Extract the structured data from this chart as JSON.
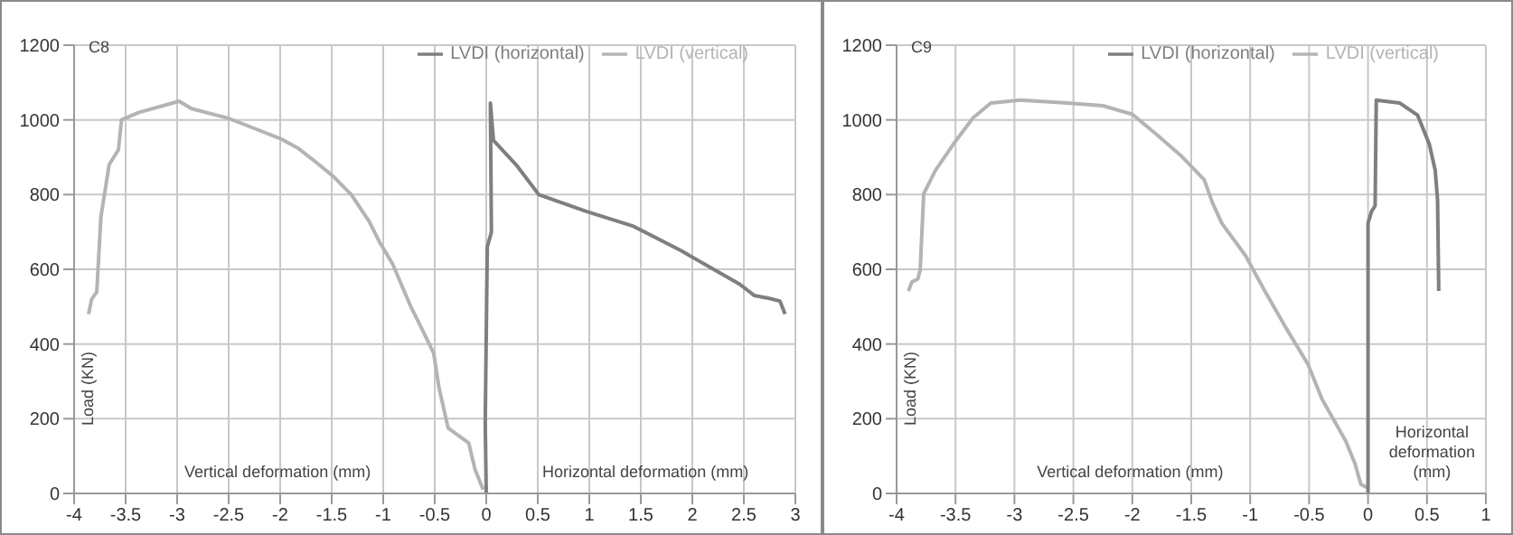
{
  "chart_data": [
    {
      "type": "line",
      "title": "C8",
      "ylabel": "Load  (KN)",
      "annotations": [
        "Vertical deformation  (mm)",
        "Horizontal deformation (mm)"
      ],
      "xlim": [
        -4,
        3
      ],
      "xticks": [
        -4,
        -3.5,
        -3,
        -2.5,
        -2,
        -1.5,
        -1,
        -0.5,
        0,
        0.5,
        1,
        1.5,
        2,
        2.5,
        3
      ],
      "ylim": [
        0,
        1200
      ],
      "yticks": [
        0,
        200,
        400,
        600,
        800,
        1000,
        1200
      ],
      "grid": true,
      "legend": "top right",
      "series": [
        {
          "name": "LVDI (vertical)",
          "color": "#b4b4b4",
          "x": [
            -3.86,
            -3.83,
            -3.78,
            -3.74,
            -3.66,
            -3.57,
            -3.54,
            -3.37,
            -2.98,
            -2.86,
            -2.51,
            -2.23,
            -2,
            -1.83,
            -1.69,
            -1.49,
            -1.31,
            -1.14,
            -1.03,
            -0.91,
            -0.74,
            -0.57,
            -0.51,
            -0.46,
            -0.37,
            -0.17,
            -0.11,
            -0.03
          ],
          "values": [
            480,
            520,
            540,
            740,
            880,
            920,
            1000,
            1020,
            1050,
            1030,
            1005,
            975,
            950,
            925,
            895,
            850,
            800,
            730,
            670,
            615,
            505,
            410,
            375,
            285,
            175,
            135,
            65,
            10
          ]
        },
        {
          "name": "LVDI (horizontal)",
          "color": "#7f7f7f",
          "x": [
            0,
            -0.01,
            0.01,
            0.05,
            0.04,
            0.07,
            0.29,
            0.51,
            0.97,
            1.43,
            1.89,
            2.46,
            2.6,
            2.75,
            2.85,
            2.9
          ],
          "values": [
            0,
            190,
            660,
            700,
            1045,
            945,
            880,
            800,
            755,
            715,
            650,
            560,
            530,
            522,
            515,
            480
          ]
        }
      ]
    },
    {
      "type": "line",
      "title": "C9",
      "ylabel": "Load  (KN)",
      "annotations": [
        "Vertical deformation  (mm)",
        "Horizontal deformation (mm)"
      ],
      "xlim": [
        -4,
        1
      ],
      "xticks": [
        -4,
        -3.5,
        -3,
        -2.5,
        -2,
        -1.5,
        -1,
        -0.5,
        0,
        0.5,
        1
      ],
      "ylim": [
        0,
        1200
      ],
      "yticks": [
        0,
        200,
        400,
        600,
        800,
        1000,
        1200
      ],
      "grid": true,
      "legend": "top right",
      "series": [
        {
          "name": "LVDI (vertical)",
          "color": "#b4b4b4",
          "x": [
            -3.9,
            -3.87,
            -3.82,
            -3.8,
            -3.77,
            -3.67,
            -3.5,
            -3.35,
            -3.2,
            -2.95,
            -2.55,
            -2.25,
            -2,
            -1.79,
            -1.59,
            -1.39,
            -1.32,
            -1.24,
            -1.04,
            -0.89,
            -0.69,
            -0.51,
            -0.39,
            -0.19,
            -0.11,
            -0.06,
            -0.01
          ],
          "values": [
            542,
            566,
            574,
            598,
            802,
            865,
            943,
            1006,
            1045,
            1053,
            1045,
            1038,
            1015,
            960,
            905,
            840,
            778,
            723,
            637,
            550,
            440,
            346,
            252,
            141,
            79,
            24,
            16
          ]
        },
        {
          "name": "LVDI (horizontal)",
          "color": "#7f7f7f",
          "x": [
            0,
            0,
            0.03,
            0.06,
            0.07,
            0.27,
            0.42,
            0.52,
            0.57,
            0.59,
            0.6
          ],
          "values": [
            0,
            723,
            755,
            770,
            1053,
            1045,
            1013,
            935,
            865,
            786,
            542
          ]
        }
      ]
    }
  ]
}
